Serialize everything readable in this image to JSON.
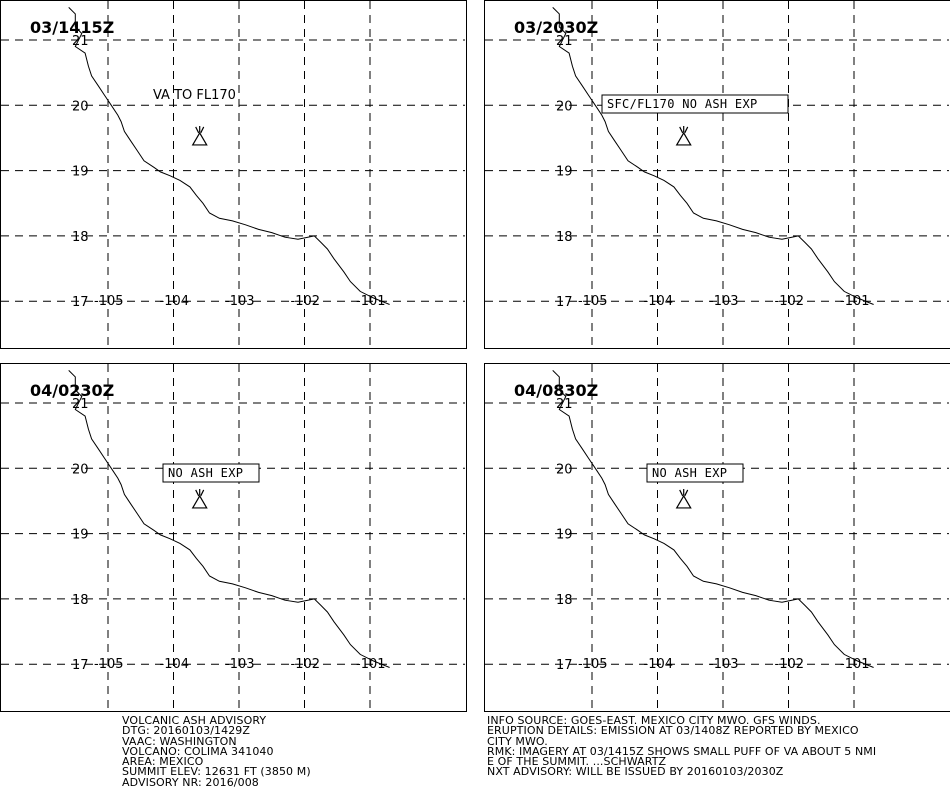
{
  "panels": [
    {
      "time_label": "03/1415Z",
      "annotation": "VA TO FL170",
      "annotation_boxed": false
    },
    {
      "time_label": "03/2030Z",
      "annotation": "SFC/FL170 NO ASH EXP",
      "annotation_boxed": true
    },
    {
      "time_label": "04/0230Z",
      "annotation": "NO ASH EXP",
      "annotation_boxed": true
    },
    {
      "time_label": "04/0830Z",
      "annotation": "NO ASH EXP",
      "annotation_boxed": true
    }
  ],
  "map": {
    "lon_ticks": [
      "-105",
      "-104",
      "-103",
      "-102",
      "-101"
    ],
    "lat_ticks": [
      "17",
      "18",
      "19",
      "20",
      "21"
    ],
    "volcano_icon": "volcano-symbol-icon",
    "volcano_position": {
      "lon": -103.6,
      "lat": 19.5
    }
  },
  "advisory_left": [
    "VOLCANIC ASH ADVISORY",
    "DTG: 20160103/1429Z",
    "VAAC: WASHINGTON",
    "VOLCANO: COLIMA 341040",
    "AREA: MEXICO",
    "SUMMIT ELEV: 12631 FT (3850 M)",
    "ADVISORY NR: 2016/008"
  ],
  "advisory_right": [
    "INFO SOURCE: GOES-EAST. MEXICO CITY MWO. GFS WINDS.",
    "ERUPTION DETAILS: EMISSION AT 03/1408Z REPORTED BY MEXICO",
    "CITY MWO.",
    "RMK: IMAGERY AT 03/1415Z SHOWS SMALL PUFF OF VA ABOUT 5 NMI",
    "E OF THE SUMMIT. ...SCHWARTZ",
    "NXT ADVISORY: WILL BE ISSUED BY 20160103/2030Z"
  ]
}
